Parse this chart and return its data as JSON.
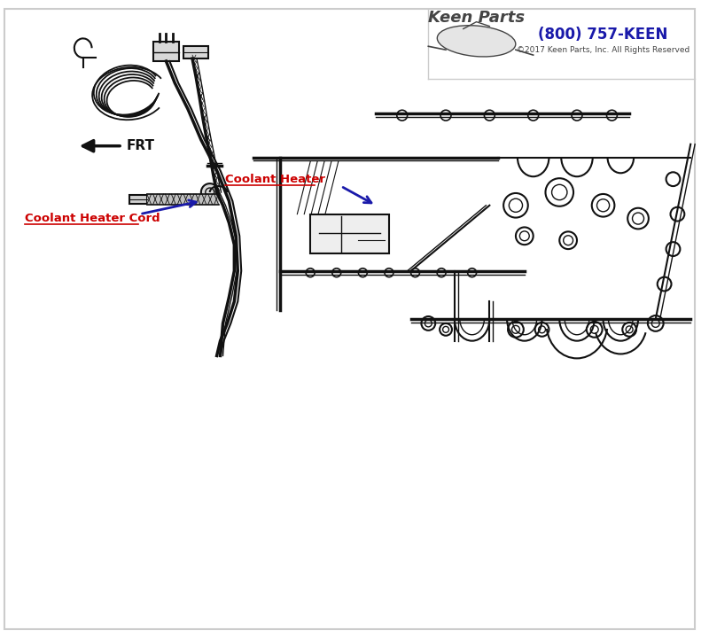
{
  "background_color": "#ffffff",
  "border_color": "#cccccc",
  "label_coolant_heater_cord": "Coolant Heater Cord",
  "label_coolant_heater": "Coolant Heater",
  "label_frt": "FRT",
  "label_phone": "(800) 757-KEEN",
  "label_copyright": "©2017 Keen Parts, Inc. All Rights Reserved",
  "label_color_red": "#cc0000",
  "label_color_blue": "#1a1aaa",
  "arrow_color": "#1a1aaa",
  "drawing_color": "#111111",
  "logo_color": "#444444"
}
